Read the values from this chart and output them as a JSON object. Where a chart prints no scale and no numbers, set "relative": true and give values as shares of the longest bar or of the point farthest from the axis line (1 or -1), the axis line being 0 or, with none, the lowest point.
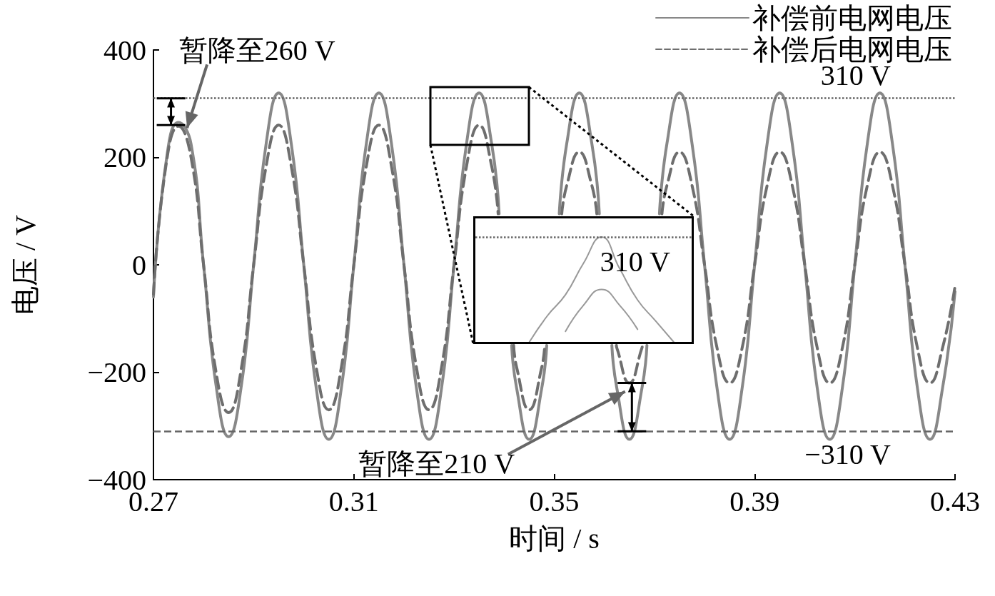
{
  "chart_data": [
    {
      "type": "line",
      "xlabel": "时间 / s",
      "ylabel": "电压 / V",
      "xlim": [
        0.27,
        0.43
      ],
      "xticks": [
        0.27,
        0.31,
        0.35,
        0.39,
        0.43
      ],
      "ylim": [
        -400,
        400
      ],
      "yticks": [
        {
          "value": -400,
          "label": "−400"
        },
        {
          "value": -200,
          "label": "−200"
        },
        0,
        200,
        400
      ],
      "grid": false,
      "legend": "top right",
      "marker": "none",
      "series": [
        {
          "name": "补偿前电网电压",
          "color": "#888888",
          "line_style": "solid",
          "x": [
            0.27,
            0.2725,
            0.275,
            0.2775,
            0.28,
            0.2825,
            0.285,
            0.2875,
            0.29,
            0.2925,
            0.295,
            0.2975,
            0.3,
            0.3025,
            0.305,
            0.3075,
            0.31,
            0.3125,
            0.315,
            0.3175,
            0.32,
            0.3225,
            0.325,
            0.3275,
            0.33,
            0.3325,
            0.335,
            0.3375,
            0.339,
            0.34,
            0.3415,
            0.3425,
            0.345,
            0.3475,
            0.3485,
            0.35,
            0.351,
            0.3525,
            0.355,
            0.3575,
            0.359,
            0.36,
            0.3615,
            0.3625,
            0.365,
            0.3675,
            0.3685,
            0.37,
            0.371,
            0.3725,
            0.375,
            0.3775,
            0.38,
            0.3825,
            0.385,
            0.3875,
            0.39,
            0.3925,
            0.395,
            0.3975,
            0.4,
            0.4025,
            0.405,
            0.4075,
            0.41,
            0.4125,
            0.415,
            0.4175,
            0.42,
            0.4225,
            0.425,
            0.4275,
            0.43
          ],
          "values": [
            -60,
            190,
            265,
            225,
            0,
            -225,
            -320,
            -228,
            0,
            226,
            320,
            226,
            0,
            -230,
            -325,
            -230,
            0,
            226,
            320,
            226,
            0,
            -230,
            -325,
            -230,
            0,
            226,
            320,
            226,
            95,
            null,
            -150,
            -230,
            -325,
            -230,
            -150,
            null,
            95,
            226,
            320,
            226,
            95,
            null,
            -150,
            -230,
            -325,
            -230,
            -150,
            null,
            95,
            226,
            320,
            226,
            0,
            -230,
            -325,
            -230,
            0,
            226,
            320,
            226,
            0,
            -230,
            -325,
            -230,
            0,
            226,
            320,
            226,
            0,
            -230,
            -325,
            -230,
            -50
          ]
        },
        {
          "name": "补偿后电网电压",
          "color": "#6e6e6e",
          "line_style": "dashed",
          "x": [
            0.27,
            0.2725,
            0.275,
            0.2775,
            0.28,
            0.2825,
            0.285,
            0.2875,
            0.29,
            0.2925,
            0.295,
            0.2975,
            0.3,
            0.3025,
            0.305,
            0.3075,
            0.31,
            0.3125,
            0.315,
            0.3175,
            0.32,
            0.3225,
            0.325,
            0.3275,
            0.33,
            0.3325,
            0.335,
            0.3375,
            0.3388,
            0.34,
            0.3419,
            0.3425,
            0.345,
            0.3475,
            0.3481,
            0.35,
            0.3515,
            0.3525,
            0.355,
            0.3575,
            0.3585,
            0.36,
            0.3624,
            0.3625,
            0.365,
            0.3675,
            0.3676,
            0.37,
            0.3715,
            0.3725,
            0.375,
            0.3775,
            0.38,
            0.3825,
            0.385,
            0.3875,
            0.39,
            0.3925,
            0.395,
            0.3975,
            0.4,
            0.4025,
            0.405,
            0.4075,
            0.41,
            0.4125,
            0.415,
            0.4175,
            0.42,
            0.4225,
            0.425,
            0.4275,
            0.43
          ],
          "values": [
            -55,
            185,
            258,
            200,
            0,
            -200,
            -275,
            -195,
            0,
            184,
            260,
            184,
            0,
            -191,
            -270,
            -191,
            0,
            184,
            260,
            184,
            0,
            -191,
            -270,
            -191,
            0,
            184,
            260,
            184,
            95,
            null,
            -150,
            -191,
            -270,
            -191,
            -150,
            null,
            95,
            148,
            210,
            148,
            95,
            null,
            -150,
            -155,
            -220,
            -155,
            -150,
            null,
            95,
            148,
            210,
            148,
            0,
            -155,
            -220,
            -155,
            0,
            148,
            210,
            148,
            0,
            -155,
            -220,
            -155,
            0,
            148,
            210,
            148,
            0,
            -155,
            -220,
            -155,
            -40
          ]
        }
      ],
      "ref_lines": [
        {
          "axis": "y",
          "value": 310,
          "label": "310 V",
          "color": "#666666",
          "line_style": "dotted"
        },
        {
          "axis": "y",
          "value": -310,
          "label": "−310 V",
          "color": "#666666",
          "line_style": "dashed"
        }
      ],
      "annotations": [
        {
          "text": "暂降至260 V",
          "x": 0.275,
          "y": 260
        },
        "暂降至210 V"
      ]
    },
    {
      "type": "line",
      "relative": true,
      "marker": "none",
      "categories": [
        null,
        null,
        null,
        null,
        null,
        null,
        null,
        null,
        null,
        null,
        null,
        null,
        null
      ],
      "series": [
        {
          "color": "#999999",
          "line_style": "solid",
          "values": [
            null,
            null,
            null,
            0,
            0.25,
            0.45,
            0.75,
            1,
            0.7,
            0.4,
            0.2,
            0,
            null
          ]
        },
        {
          "color": "#999999",
          "line_style": "solid",
          "values": [
            null,
            null,
            null,
            null,
            null,
            0.1,
            0.35,
            0.5,
            0.35,
            0.12,
            null,
            null,
            null
          ]
        }
      ],
      "ref_lines": [
        {
          "axis": "y",
          "value": 1,
          "label": "310 V",
          "color": "#666666",
          "line_style": "dotted"
        }
      ]
    }
  ]
}
